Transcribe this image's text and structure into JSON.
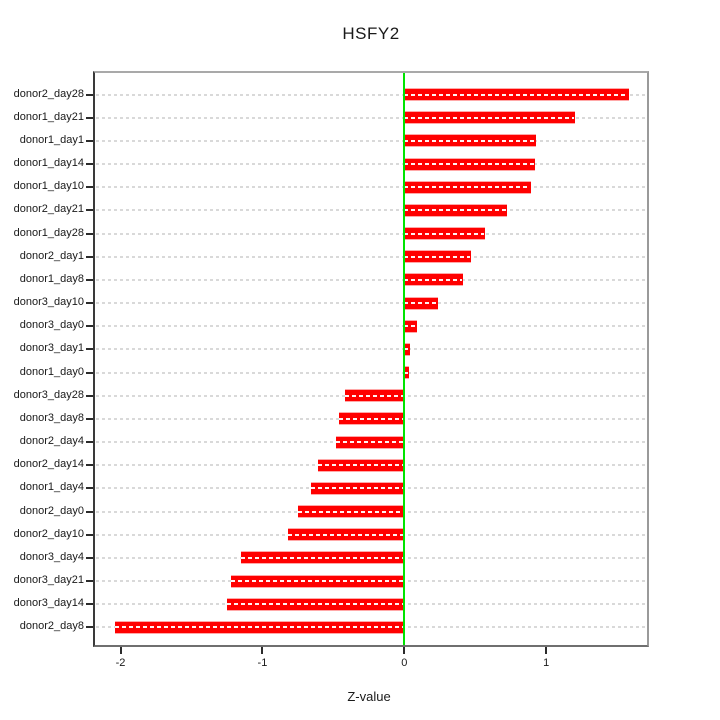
{
  "title": "HSFY2",
  "chart_data": {
    "type": "bar",
    "orientation": "horizontal",
    "title": "HSFY2",
    "xlabel": "Z-value",
    "ylabel": "",
    "xlim": [
      -2.18,
      1.71
    ],
    "x_ticks": [
      {
        "label": "-2",
        "value": -2
      },
      {
        "label": "-1",
        "value": -1
      },
      {
        "label": "0",
        "value": 0
      },
      {
        "label": "1",
        "value": 1
      }
    ],
    "grid": "horizontal-dashed-per-category",
    "legend": "none",
    "zero_line": 0,
    "colors": {
      "bar": "#ff0000",
      "bar_centerline": "#ffffff",
      "zero_line": "#00e400",
      "gridline": "#d9d9d9",
      "box_border": "#8c8c8c",
      "text": "#1a1a1a",
      "background": "#ffffff"
    },
    "categories": [
      "donor2_day28",
      "donor1_day21",
      "donor1_day1",
      "donor1_day14",
      "donor1_day10",
      "donor2_day21",
      "donor1_day28",
      "donor2_day1",
      "donor1_day8",
      "donor3_day10",
      "donor3_day0",
      "donor3_day1",
      "donor1_day0",
      "donor3_day28",
      "donor3_day8",
      "donor2_day4",
      "donor2_day14",
      "donor1_day4",
      "donor2_day0",
      "donor2_day10",
      "donor3_day4",
      "donor3_day21",
      "donor3_day14",
      "donor2_day8"
    ],
    "values": [
      1.58,
      1.2,
      0.93,
      0.92,
      0.89,
      0.72,
      0.57,
      0.47,
      0.41,
      0.24,
      0.09,
      0.04,
      0.03,
      -0.42,
      -0.46,
      -0.48,
      -0.61,
      -0.66,
      -0.75,
      -0.82,
      -1.15,
      -1.22,
      -1.25,
      -2.04
    ]
  }
}
